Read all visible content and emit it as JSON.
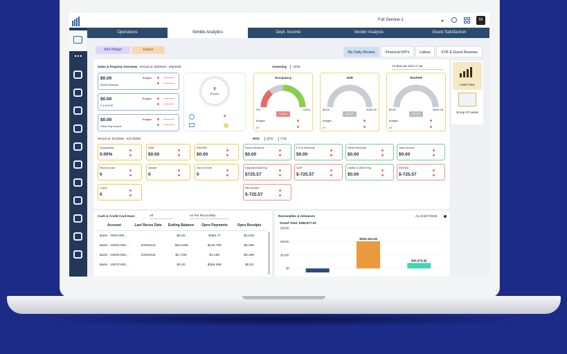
{
  "header": {
    "property": "Full Service-1",
    "avatar": "M"
  },
  "tabs": [
    "Operations",
    "Nimble Analytics",
    "Dept. Income",
    "Vendor Analysis",
    "Guest Satisfaction"
  ],
  "actions": [
    "Add Widget",
    "Export"
  ],
  "review_tabs": [
    "My Daily Review",
    "Financial KPI's",
    "Labour",
    "STR & Guest Reviews"
  ],
  "side_views": [
    "Hotel View",
    "Group Of Hotels"
  ],
  "overview": {
    "title": "Sales & Property Overview",
    "period": "Period at: 6/6/2025 - 6/6/2025",
    "toggle": [
      "Yesterday",
      "MTD"
    ],
    "compare": "Vs Bud var and LY var",
    "budget": "Budget",
    "ly": "LY",
    "summary": [
      {
        "value": "$0.00",
        "label": "Room Revenue"
      },
      {
        "value": "$0.00",
        "label": "F & B EXP"
      },
      {
        "value": "$0.00",
        "label": "Other Exp Income"
      }
    ],
    "rooms": {
      "value": "0",
      "label": "Rooms"
    },
    "gauges": [
      {
        "title": "Occupancy",
        "min": "0%",
        "max": "100%",
        "value": "0.00%"
      },
      {
        "title": "ADR",
        "min": "$0.00",
        "max": "$400.00",
        "value": "$0.00"
      },
      {
        "title": "RevPAR",
        "min": "$0.00",
        "max": "$400.00",
        "value": "$0.00"
      }
    ]
  },
  "period": {
    "label": "Period at: 6/1/2025 - 6/17/2025",
    "toggle": [
      "MTD",
      "QTD",
      "YTD"
    ],
    "stats": [
      {
        "label": "Occupancy",
        "value": "0.00%"
      },
      {
        "label": "ADR",
        "value": "$0.00"
      },
      {
        "label": "RevPAR",
        "value": "$0.00"
      },
      {
        "label": "Rooms Sold",
        "value": "0"
      },
      {
        "label": "Vacant",
        "value": "0"
      },
      {
        "label": "Out of Order",
        "value": "0"
      },
      {
        "label": "Comp",
        "value": "0"
      }
    ],
    "financials": [
      {
        "label": "Room Revenue",
        "value": "$0.00",
        "tone": "green"
      },
      {
        "label": "F & B Revenue",
        "value": "$0.00",
        "tone": "green"
      },
      {
        "label": "Other Revenue",
        "value": "$0.00",
        "tone": "green"
      },
      {
        "label": "Total Income",
        "value": "$0.00",
        "tone": "green"
      },
      {
        "label": "Departmental Exp",
        "value": "$725.57",
        "tone": "red"
      },
      {
        "label": "GOP",
        "value": "$-725.57",
        "tone": "red"
      },
      {
        "label": "Undist & Other Exp",
        "value": "$0.00",
        "tone": "green"
      },
      {
        "label": "EBITDA",
        "value": "$-725.57",
        "tone": "red"
      },
      {
        "label": "Net Income",
        "value": "$-725.57",
        "tone": "red"
      }
    ]
  },
  "cash": {
    "title": "Cash & Credit Card Dues",
    "filter": "All",
    "mode": "As Per Reconciliat...",
    "columns": [
      "Account",
      "Last Recon Date",
      "Ending Balance",
      "Open Payments",
      "Open Receipts"
    ],
    "rows": [
      [
        "Bank - 0000.000...",
        "",
        "$0.00",
        "$383.77",
        "$2.62K"
      ],
      [
        "Bank - 10053.000...",
        "4/30/2024",
        "-$10.84M",
        "$135.76K",
        "$5.36K"
      ],
      [
        "Bank - 10063.000...",
        "4/30/2024",
        "$1.74M",
        "$1.18K",
        "$5.36K"
      ],
      [
        "Bank - 10070.000...",
        "",
        "$0.00",
        "$369.38K",
        "$0.00"
      ]
    ]
  },
  "receivables": {
    "title": "Receivables & Advances",
    "as_of": "As of 6/17/2025",
    "total": "Grand Total: $395,877.00"
  },
  "chart_data": {
    "type": "bar",
    "series": [
      {
        "color": "#2f4a7a",
        "values": [
          -30000
        ],
        "value_labels": [
          null
        ]
      },
      {
        "color": "#e89a3c",
        "values": [
          202151.28
        ],
        "value_labels": [
          "$202,151.28"
        ]
      },
      {
        "color": "#3fd6b0",
        "values": [
          40374.82
        ],
        "value_labels": [
          "$40,374.82"
        ]
      }
    ],
    "ylim": [
      -40000,
      300000
    ],
    "yticks": [
      {
        "value": 0,
        "label": "$0"
      },
      {
        "value": 100000,
        "label": "$100K"
      },
      {
        "value": 200000,
        "label": "$200K"
      },
      {
        "value": 300000,
        "label": "$300K"
      }
    ],
    "grid": true
  }
}
